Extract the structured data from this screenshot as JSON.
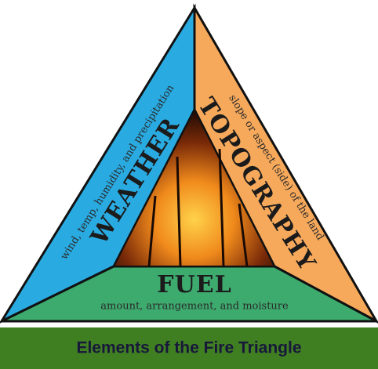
{
  "weather": {
    "title": "WEATHER",
    "description": "wind, temp, humidity, and precipitation"
  },
  "topography": {
    "title": "TOPOGRAPHY",
    "description": "slope or aspect (side) of the land"
  },
  "fuel": {
    "title": "FUEL",
    "description": "amount, arrangement, and moisture"
  },
  "caption": "Elements of the Fire Triangle"
}
